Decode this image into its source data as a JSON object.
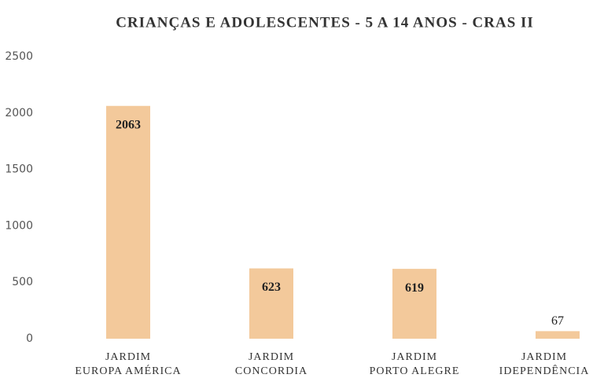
{
  "chart_data": {
    "type": "bar",
    "title": "CRIANÇAS E ADOLESCENTES - 5 A 14 ANOS - CRAS II",
    "categories": [
      "JARDIM\nEUROPA AMÉRICA",
      "JARDIM\nCONCORDIA",
      "JARDIM\nPORTO ALEGRE",
      "JARDIM\nIDEPENDÊNCIA"
    ],
    "values": [
      2063,
      623,
      619,
      67
    ],
    "color": "#f3c99b",
    "ylim": [
      0,
      2500
    ],
    "yticks": [
      0,
      500,
      1000,
      1500,
      2000,
      2500
    ],
    "grid": false
  }
}
